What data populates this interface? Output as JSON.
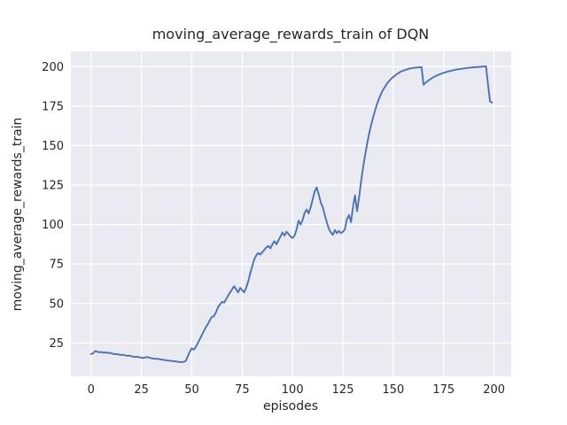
{
  "chart_data": {
    "type": "line",
    "title": "moving_average_rewards_train of DQN",
    "xlabel": "episodes",
    "ylabel": "moving_average_rewards_train",
    "xticks": [
      0,
      25,
      50,
      75,
      100,
      125,
      150,
      175,
      200
    ],
    "yticks": [
      25,
      50,
      75,
      100,
      125,
      150,
      175,
      200
    ],
    "xlim": [
      -10,
      208.5
    ],
    "ylim": [
      3.9,
      209.7
    ],
    "grid": true,
    "legend": "none",
    "style": {
      "line_color": "#4C72B0",
      "plot_background": "#EAEAF2",
      "grid_color": "#FFFFFF",
      "text_color": "#262626",
      "figure_background": "#FFFFFF"
    },
    "series": [
      {
        "name": "moving_average_rewards_train",
        "x_start": 0,
        "x_step": 1,
        "values": [
          18.0,
          18.4,
          19.8,
          19.5,
          19.1,
          19.3,
          18.9,
          19.1,
          18.7,
          18.9,
          18.4,
          18.1,
          17.9,
          18.0,
          17.6,
          17.4,
          17.6,
          17.1,
          16.9,
          17.0,
          16.6,
          16.4,
          16.1,
          16.3,
          15.9,
          15.7,
          15.5,
          15.9,
          16.1,
          15.6,
          15.3,
          15.1,
          14.9,
          15.0,
          14.7,
          14.5,
          14.3,
          14.1,
          13.9,
          13.8,
          13.6,
          13.5,
          13.3,
          13.1,
          13.0,
          12.9,
          13.1,
          13.6,
          16.5,
          19.5,
          21.6,
          20.8,
          22.5,
          25.0,
          27.5,
          30.0,
          32.5,
          35.0,
          37.0,
          39.5,
          41.5,
          42.0,
          44.5,
          47.5,
          49.5,
          51.0,
          50.5,
          52.5,
          55.0,
          57.0,
          59.0,
          61.0,
          59.0,
          57.0,
          60.0,
          58.5,
          57.0,
          60.0,
          64.0,
          69.0,
          73.5,
          78.0,
          80.5,
          82.0,
          81.0,
          82.5,
          84.0,
          85.5,
          86.5,
          85.0,
          87.5,
          89.5,
          87.5,
          90.0,
          92.5,
          95.0,
          93.0,
          95.5,
          94.0,
          92.5,
          91.5,
          93.0,
          97.0,
          102.5,
          100.0,
          103.0,
          107.5,
          109.5,
          107.0,
          111.0,
          116.0,
          121.0,
          123.5,
          119.0,
          114.0,
          111.0,
          106.0,
          101.5,
          97.5,
          95.0,
          93.5,
          96.5,
          94.5,
          96.0,
          94.5,
          95.5,
          97.0,
          103.5,
          106.0,
          101.5,
          111.0,
          118.5,
          108.5,
          117.0,
          127.0,
          136.0,
          144.0,
          151.0,
          157.5,
          163.0,
          168.0,
          172.5,
          176.5,
          180.0,
          183.0,
          185.5,
          187.5,
          189.5,
          191.0,
          192.5,
          193.5,
          194.5,
          195.5,
          196.3,
          197.0,
          197.5,
          198.0,
          198.4,
          198.7,
          199.0,
          199.2,
          199.4,
          199.5,
          199.6,
          199.7,
          188.5,
          189.8,
          190.8,
          191.8,
          192.6,
          193.4,
          194.0,
          194.6,
          195.2,
          195.7,
          196.1,
          196.5,
          196.9,
          197.2,
          197.5,
          197.8,
          198.1,
          198.3,
          198.5,
          198.7,
          198.9,
          199.1,
          199.2,
          199.4,
          199.5,
          199.6,
          199.7,
          199.8,
          199.9,
          200.0,
          200.1,
          200.2,
          189.0,
          178.0,
          177.3
        ]
      }
    ]
  }
}
